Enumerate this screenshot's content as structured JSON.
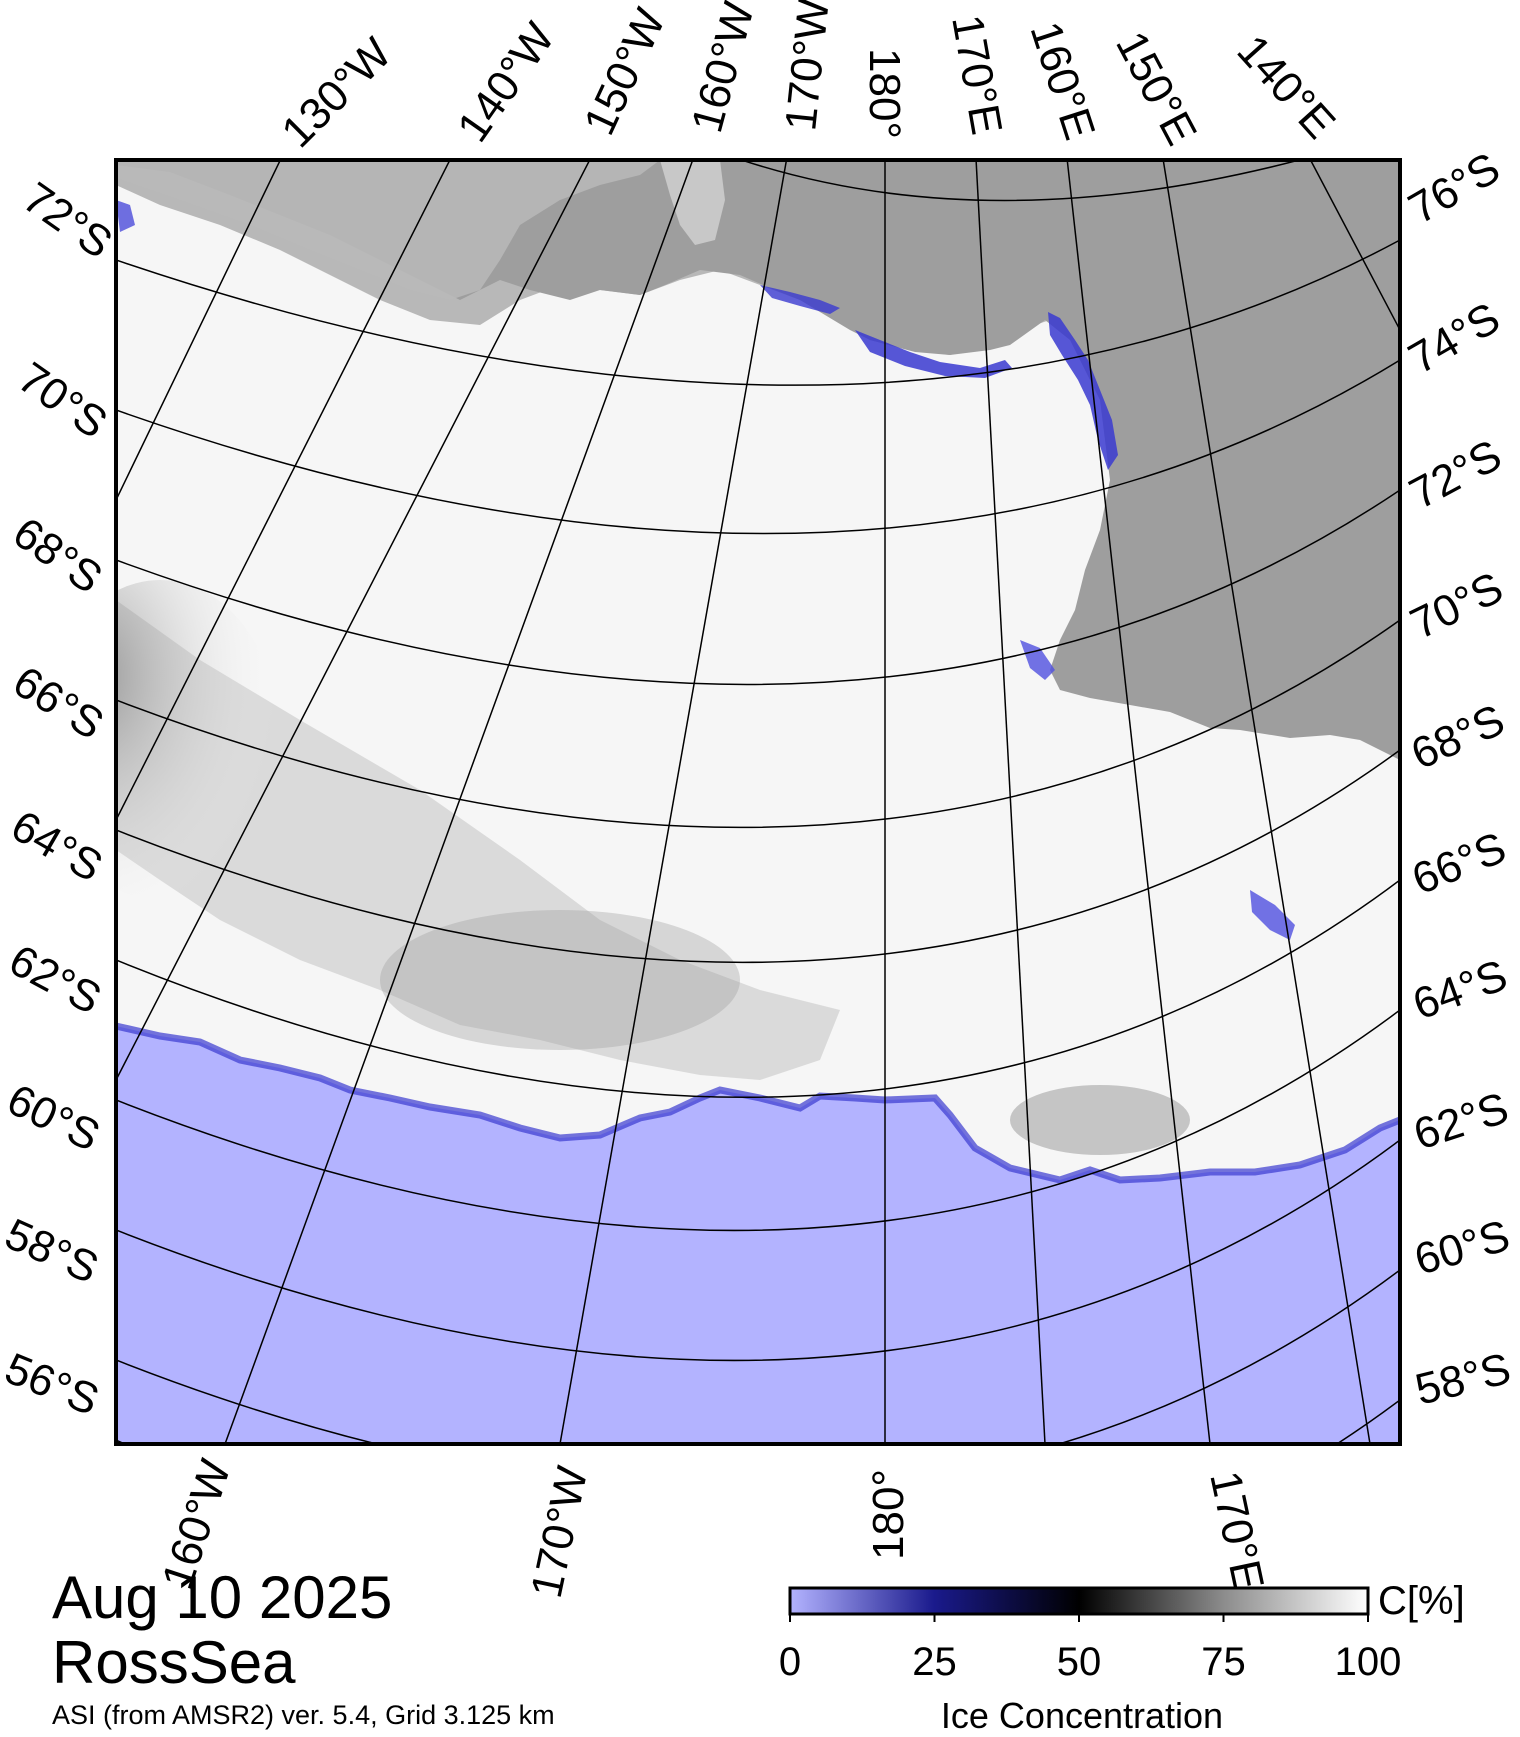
{
  "date": "Aug 10 2025",
  "region": "RossSea",
  "source": "ASI (from AMSR2) ver. 5.4,  Grid 3.125 km",
  "colors": {
    "open_water": "#b3b3ff",
    "land": "#9e9e9e",
    "ice_shelf": "#b8b8b8",
    "ice_full": "#ffffff",
    "frame": "#000000"
  },
  "graticule": {
    "top_lon_labels": [
      "130°W",
      "140°W",
      "150°W",
      "160°W",
      "170°W",
      "180°",
      "170°E",
      "160°E",
      "150°E",
      "140°E"
    ],
    "bottom_lon_labels": [
      "160°W",
      "170°W",
      "180°",
      "170°E"
    ],
    "left_lat_labels": [
      "72°S",
      "70°S",
      "68°S",
      "66°S",
      "64°S",
      "62°S",
      "60°S",
      "58°S",
      "56°S"
    ],
    "right_lat_labels": [
      "76°S",
      "74°S",
      "72°S",
      "70°S",
      "68°S",
      "66°S",
      "64°S",
      "62°S",
      "60°S",
      "58°S"
    ]
  },
  "colorbar": {
    "title": "Ice Concentration",
    "unit": "C[%]",
    "ticks": [
      "0",
      "25",
      "50",
      "75",
      "100"
    ],
    "stops": [
      {
        "value": 0,
        "color": "#b3b3ff"
      },
      {
        "value": 25,
        "color": "#1a1a8c"
      },
      {
        "value": 50,
        "color": "#000000"
      },
      {
        "value": 75,
        "color": "#8c8c8c"
      },
      {
        "value": 100,
        "color": "#ffffff"
      }
    ]
  }
}
